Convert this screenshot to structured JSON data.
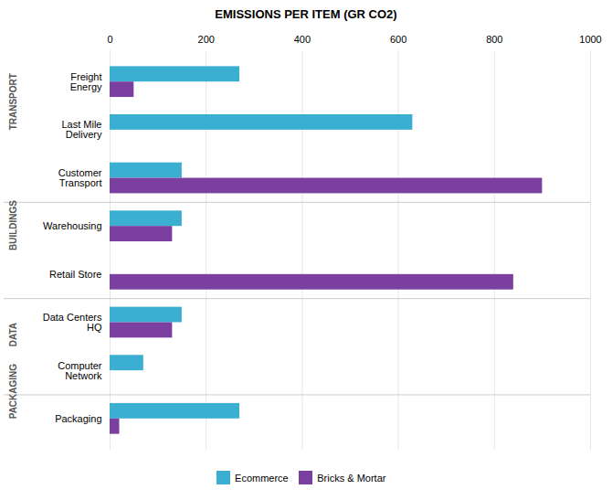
{
  "chart_data": {
    "type": "bar",
    "orientation": "horizontal",
    "title": "EMISSIONS PER ITEM (GR CO2)",
    "categories": [
      "Freight\nEnergy",
      "Last Mile\nDelivery",
      "Customer\nTransport",
      "Warehousing",
      "Retail Store",
      "Data Centers\nHQ",
      "Computer\nNetwork",
      "Packaging"
    ],
    "series": [
      {
        "name": "Ecommerce",
        "color": "#3BAFD1",
        "values": [
          270,
          630,
          150,
          150,
          0,
          150,
          70,
          270
        ]
      },
      {
        "name": "Bricks & Mortar",
        "color": "#7B3FA0",
        "values": [
          50,
          0,
          900,
          130,
          840,
          130,
          0,
          20
        ]
      }
    ],
    "sections": [
      {
        "name": "TRANSPORT",
        "categories": [
          "Freight\nEnergy",
          "Last Mile\nDelivery",
          "Customer\nTransport"
        ]
      },
      {
        "name": "BUILDINGS",
        "categories": [
          "Warehousing",
          "Retail Store"
        ]
      },
      {
        "name": "DATA",
        "categories": [
          "Data Centers\nHQ",
          "Computer\nNetwork"
        ]
      },
      {
        "name": "PACKAGING",
        "categories": [
          "Packaging"
        ]
      }
    ],
    "xlim": [
      0,
      1000
    ],
    "xticks": [
      0,
      200,
      400,
      600,
      800,
      1000
    ],
    "grid": true,
    "legend": "bottom"
  }
}
